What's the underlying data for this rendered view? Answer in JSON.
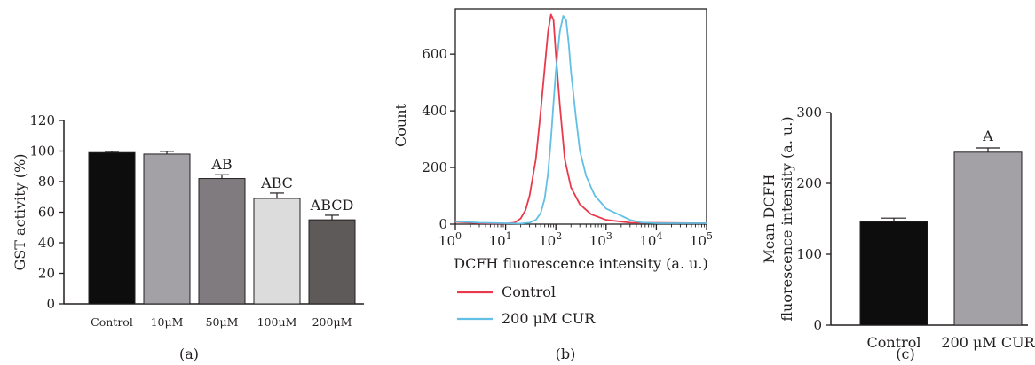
{
  "chart_data": [
    {
      "type": "bar",
      "panel_label": "(a)",
      "ylabel": "GST activity (%)",
      "xlabel": "",
      "categories": [
        "Control",
        "10μM",
        "50μM",
        "100μM",
        "200μM"
      ],
      "values": [
        99,
        98,
        82,
        69,
        55
      ],
      "errors": [
        0.8,
        1.8,
        2.5,
        3.5,
        3
      ],
      "significance": [
        "",
        "",
        "AB",
        "ABC",
        "ABCD"
      ],
      "colors": [
        "#0d0d0d",
        "#a3a1a6",
        "#807b7e",
        "#dcdcdc",
        "#5f5a5a"
      ],
      "ylim": [
        0,
        120
      ],
      "yticks": [
        0,
        20,
        40,
        60,
        80,
        100,
        120
      ]
    },
    {
      "type": "line",
      "panel_label": "(b)",
      "xlabel": "DCFH fluorescence intensity (a. u.)",
      "ylabel": "Count",
      "xscale": "log",
      "xlim": [
        1,
        100000
      ],
      "ylim": [
        0,
        760
      ],
      "xticks": [
        {
          "value": 1,
          "base": "10",
          "exp": "0"
        },
        {
          "value": 10,
          "base": "10",
          "exp": "1"
        },
        {
          "value": 100,
          "base": "10",
          "exp": "2"
        },
        {
          "value": 1000,
          "base": "10",
          "exp": "3"
        },
        {
          "value": 10000,
          "base": "10",
          "exp": "4"
        },
        {
          "value": 100000,
          "base": "10",
          "exp": "5"
        }
      ],
      "yticks": [
        0,
        200,
        400,
        600
      ],
      "legend_position": "bottom",
      "series": [
        {
          "name": "Control",
          "color": "#e8394d",
          "x": [
            1,
            3,
            10,
            15,
            20,
            25,
            30,
            40,
            50,
            60,
            70,
            80,
            90,
            100,
            120,
            150,
            200,
            300,
            500,
            1000,
            3000,
            100000
          ],
          "y": [
            8,
            3,
            2,
            5,
            20,
            50,
            100,
            230,
            400,
            550,
            680,
            740,
            720,
            600,
            420,
            230,
            130,
            70,
            35,
            15,
            5,
            3
          ]
        },
        {
          "name": "200 μM CUR",
          "color": "#62c0e4",
          "x": [
            1,
            3,
            10,
            20,
            30,
            40,
            50,
            60,
            70,
            80,
            90,
            100,
            120,
            140,
            160,
            180,
            200,
            250,
            300,
            400,
            500,
            600,
            800,
            1000,
            2000,
            3000,
            5000,
            10000,
            100000
          ],
          "y": [
            10,
            5,
            3,
            2,
            5,
            15,
            40,
            90,
            180,
            300,
            430,
            540,
            680,
            735,
            720,
            640,
            540,
            380,
            260,
            170,
            130,
            100,
            75,
            55,
            30,
            15,
            6,
            3,
            3
          ]
        }
      ]
    },
    {
      "type": "bar",
      "panel_label": "(c)",
      "ylabel": "Mean DCFH fluorescence intensity (a. u.)",
      "ylabel_lines": [
        "Mean DCFH",
        "fluorescence intensity (a. u.)"
      ],
      "xlabel": "",
      "categories": [
        "Control",
        "200 μM CUR"
      ],
      "values": [
        146,
        244
      ],
      "errors": [
        5,
        6
      ],
      "significance": [
        "",
        "A"
      ],
      "colors": [
        "#0d0d0d",
        "#a3a1a6"
      ],
      "ylim": [
        0,
        300
      ],
      "yticks": [
        0,
        100,
        200,
        300
      ]
    }
  ]
}
